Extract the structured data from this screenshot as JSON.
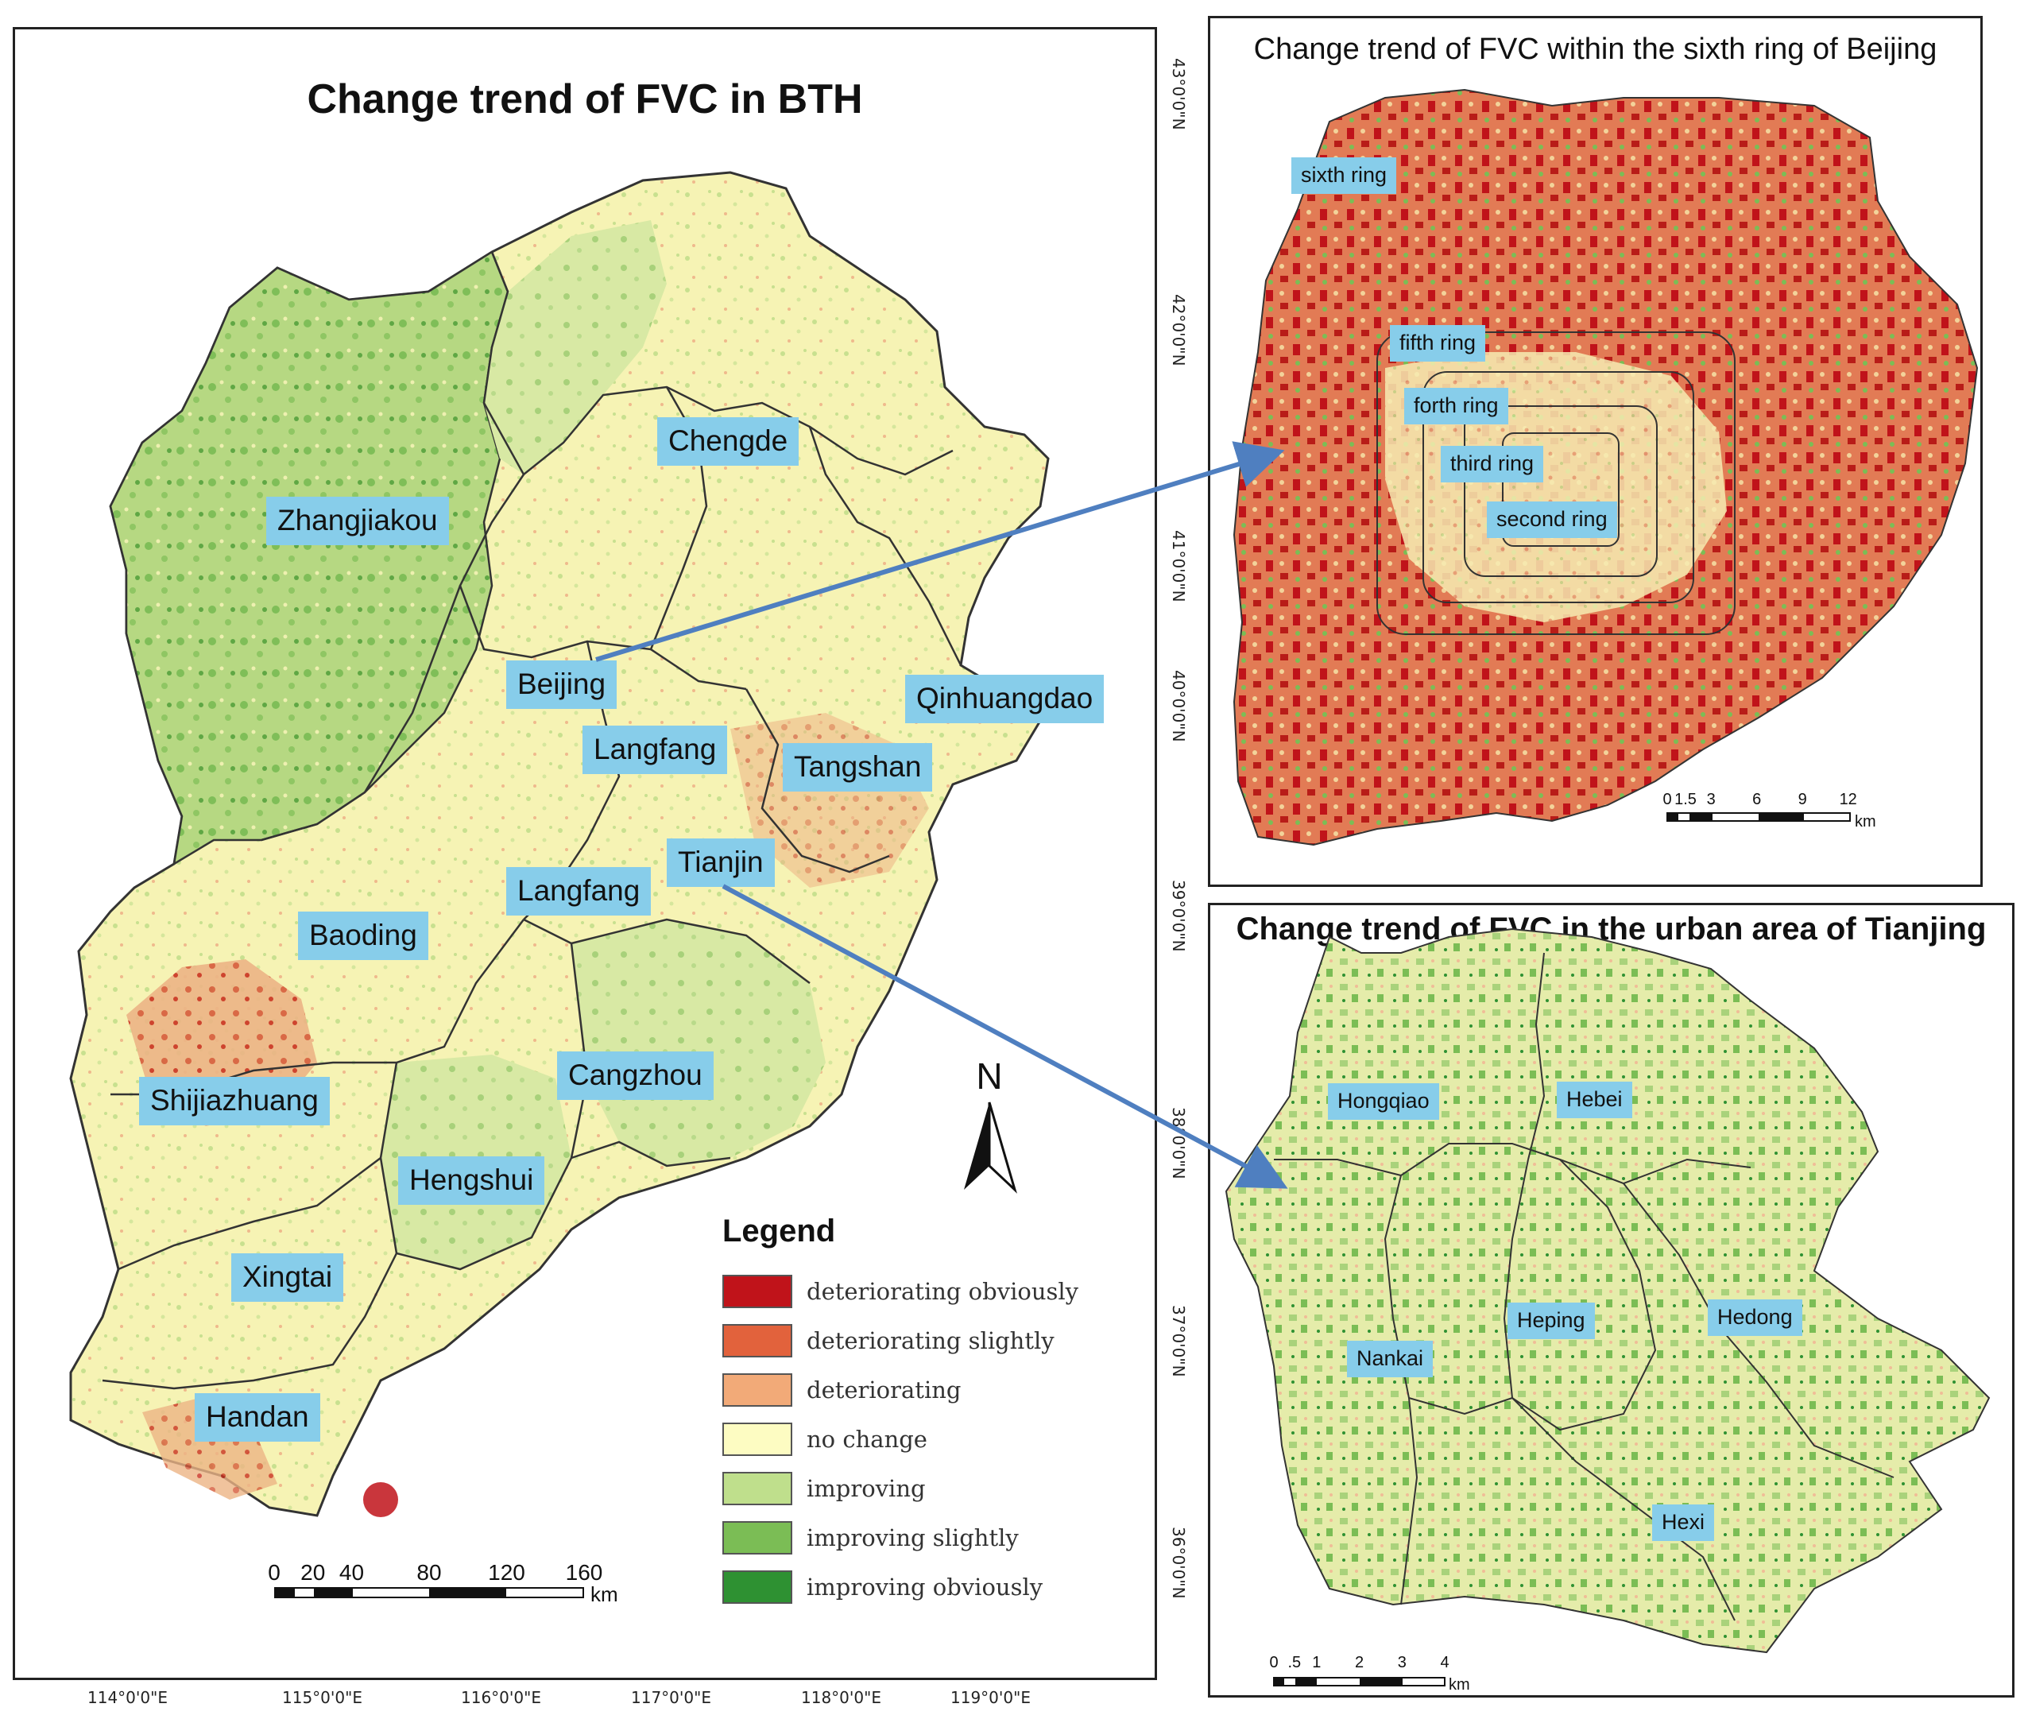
{
  "main_map": {
    "title": "Change trend of FVC in BTH",
    "cities": [
      {
        "id": "zhangjiakou",
        "name": "Zhangjiakou"
      },
      {
        "id": "chengde",
        "name": "Chengde"
      },
      {
        "id": "beijing",
        "name": "Beijing"
      },
      {
        "id": "qinhuangdao",
        "name": "Qinhuangdao"
      },
      {
        "id": "langfang-north",
        "name": "Langfang"
      },
      {
        "id": "tangshan",
        "name": "Tangshan"
      },
      {
        "id": "tianjin",
        "name": "Tianjin"
      },
      {
        "id": "langfang-south",
        "name": "Langfang"
      },
      {
        "id": "baoding",
        "name": "Baoding"
      },
      {
        "id": "cangzhou",
        "name": "Cangzhou"
      },
      {
        "id": "shijiazhuang",
        "name": "Shijiazhuang"
      },
      {
        "id": "hengshui",
        "name": "Hengshui"
      },
      {
        "id": "xingtai",
        "name": "Xingtai"
      },
      {
        "id": "handan",
        "name": "Handan"
      }
    ],
    "longitude_labels": [
      "114°0'0\"E",
      "115°0'0\"E",
      "116°0'0\"E",
      "117°0'0\"E",
      "118°0'0\"E",
      "119°0'0\"E"
    ],
    "latitude_labels": [
      "43°0'0\"N",
      "42°0'0\"N",
      "41°0'0\"N",
      "40°0'0\"N",
      "39°0'0\"N",
      "38°0'0\"N",
      "37°0'0\"N",
      "36°0'0\"N"
    ],
    "north_arrow": "N",
    "scale_bar": {
      "ticks": [
        "0",
        "20",
        "40",
        "80",
        "120",
        "160"
      ],
      "unit": "km"
    }
  },
  "legend": {
    "title": "Legend",
    "items": [
      {
        "label": "deteriorating obviously",
        "color": "#c0131a"
      },
      {
        "label": "deteriorating slightly",
        "color": "#e2623c"
      },
      {
        "label": "deteriorating",
        "color": "#f2aa78"
      },
      {
        "label": "no change",
        "color": "#fdfcc2"
      },
      {
        "label": "improving",
        "color": "#bfdf8c"
      },
      {
        "label": "improving slightly",
        "color": "#7bbd55"
      },
      {
        "label": "improving obviously",
        "color": "#2e9132"
      }
    ]
  },
  "beijing_inset": {
    "title": "Change trend of FVC within the sixth ring of Beijing",
    "rings": [
      "sixth ring",
      "fifth ring",
      "forth ring",
      "third ring",
      "second ring"
    ],
    "scale_bar": {
      "ticks": [
        "0",
        "1.5",
        "3",
        "6",
        "9",
        "12"
      ],
      "unit": "km"
    }
  },
  "tianjin_inset": {
    "title": "Change trend of FVC in the urban area of Tianjing",
    "districts": [
      "Hongqiao",
      "Hebei",
      "Nankai",
      "Heping",
      "Hedong",
      "Hexi"
    ],
    "scale_bar": {
      "ticks": [
        "0",
        ".5",
        "1",
        "2",
        "3",
        "4"
      ],
      "unit": "km"
    }
  },
  "colors": {
    "label_bg": "#87cdea",
    "arrow": "#4f7fc0",
    "boundary": "#333333"
  }
}
